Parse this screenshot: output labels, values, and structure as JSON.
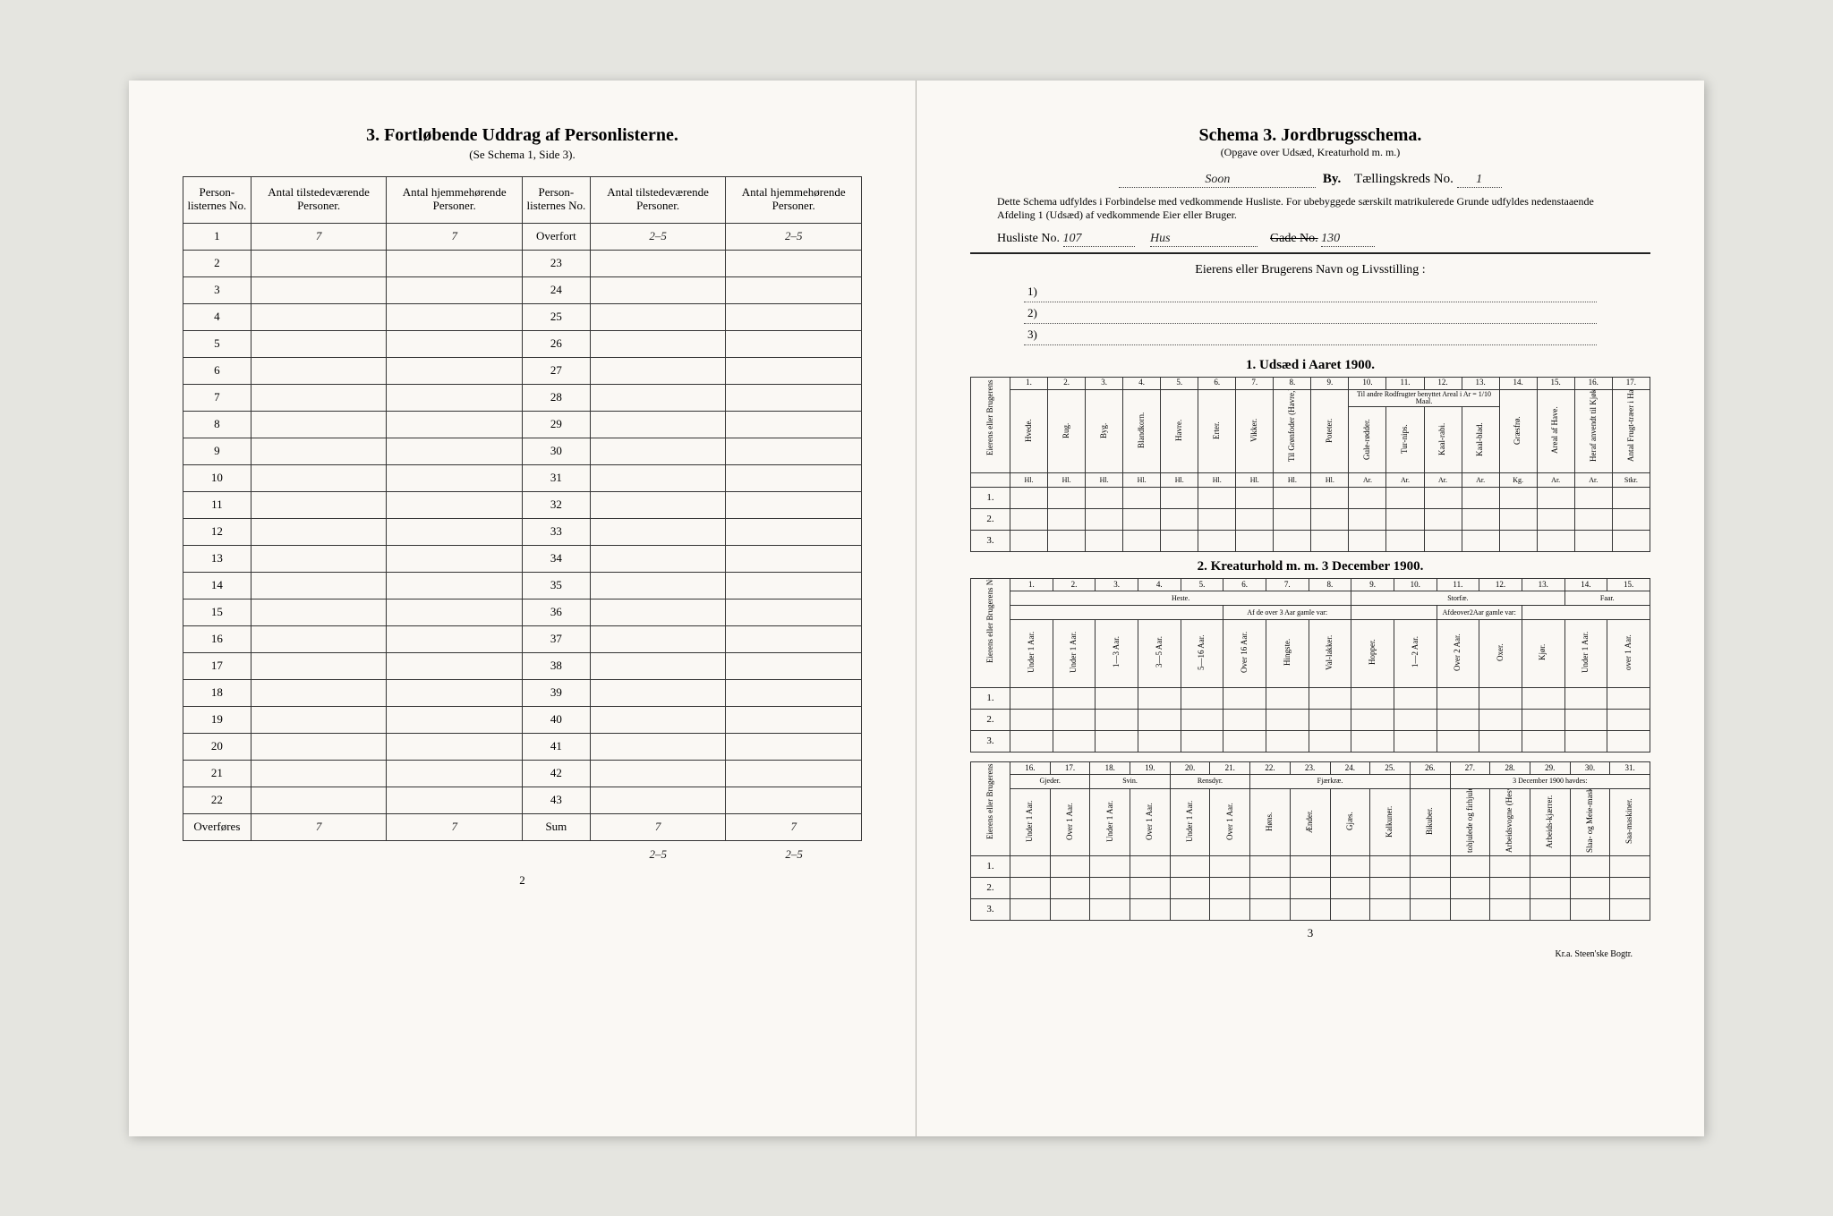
{
  "left": {
    "title": "3.  Fortløbende Uddrag af Personlisterne.",
    "subtitle": "(Se Schema 1, Side 3).",
    "headers": {
      "c1": "Person-listernes No.",
      "c2": "Antal tilstedeværende Personer.",
      "c3": "Antal hjemmehørende Personer.",
      "c4": "Person-listernes No.",
      "c5": "Antal tilstedeværende Personer.",
      "c6": "Antal hjemmehørende Personer."
    },
    "rows_left": [
      "1",
      "2",
      "3",
      "4",
      "5",
      "6",
      "7",
      "8",
      "9",
      "10",
      "11",
      "12",
      "13",
      "14",
      "15",
      "16",
      "17",
      "18",
      "19",
      "20",
      "21",
      "22"
    ],
    "overfort_label": "Overfort",
    "rows_right": [
      "23",
      "24",
      "25",
      "26",
      "27",
      "28",
      "29",
      "30",
      "31",
      "32",
      "33",
      "34",
      "35",
      "36",
      "37",
      "38",
      "39",
      "40",
      "41",
      "42",
      "43"
    ],
    "overfores_label": "Overføres",
    "sum_label": "Sum",
    "hand": {
      "r1c2": "7",
      "r1c3": "7",
      "over_c5": "2–5",
      "over_c6": "2–5",
      "bot_c2": "7",
      "bot_c3": "7",
      "sum_c5": "7",
      "sum_c6": "7",
      "below_c5": "2–5",
      "below_c6": "2–5"
    },
    "page_number": "2"
  },
  "right": {
    "title": "Schema 3.  Jordbrugsschema.",
    "subtitle": "(Opgave over Udsæd, Kreaturhold m. m.)",
    "by_line": {
      "by_val": "Soon",
      "by_lbl": "By.",
      "tk_lbl": "Tællingskreds  No.",
      "tk_val": "1"
    },
    "blurb": "Dette Schema udfyldes i Forbindelse med vedkommende Husliste.  For ubebyggede særskilt matrikulerede Grunde udfyldes nedenstaaende Afdeling 1 (Udsæd) af vedkommende Eier eller Bruger.",
    "husliste": {
      "lbl": "Husliste No.",
      "val": "107",
      "mid": "Hus",
      "gade_lbl": "Gade  No.",
      "gade_val": "130"
    },
    "owners_lbl": "Eierens eller Brugerens Navn og Livsstilling :",
    "owner_lines": [
      "1)",
      "2)",
      "3)"
    ],
    "sect1": "1.  Udsæd i Aaret 1900.",
    "t1": {
      "side": "Eierens eller Brugerens Numer (se ovenfor).",
      "nums": [
        "1.",
        "2.",
        "3.",
        "4.",
        "5.",
        "6.",
        "7.",
        "8.",
        "9.",
        "10.",
        "11.",
        "12.",
        "13.",
        "14.",
        "15.",
        "16.",
        "17."
      ],
      "heads": [
        "Hvede.",
        "Rug.",
        "Byg.",
        "Blandkorn.",
        "Havre.",
        "Erter.",
        "Vikker.",
        "Til Grønfoder (Havre,Vikker o.a.)",
        "Poteter.",
        "Gule-rødder.",
        "Tur-nips.",
        "Kaal-rabi.",
        "Kaal-blad.",
        "Græsfrø.",
        "Areal af Have.",
        "Heraf anvendt til Kjøkkenhave-vækster.",
        "Antal Frugt-træer i Haven (tilsammen)."
      ],
      "two_span": "Til andre Rodfrugter benyttet Areal i Ar = 1/10 Maal.",
      "units": [
        "Hl.",
        "Hl.",
        "Hl.",
        "Hl.",
        "Hl.",
        "Hl.",
        "Hl.",
        "Hl.",
        "Hl.",
        "Ar.",
        "Ar.",
        "Ar.",
        "Ar.",
        "Kg.",
        "Ar.",
        "Ar.",
        "Stkr."
      ],
      "rows": [
        "1.",
        "2.",
        "3."
      ]
    },
    "sect2": "2.  Kreaturhold m. m. 3 December 1900.",
    "t2": {
      "side": "Eierens eller Brugerens Numer.",
      "nums": [
        "1.",
        "2.",
        "3.",
        "4.",
        "5.",
        "6.",
        "7.",
        "8.",
        "9.",
        "10.",
        "11.",
        "12.",
        "13.",
        "14.",
        "15."
      ],
      "groups": {
        "heste": "Heste.",
        "af3": "Af de over 3 Aar gamle var:",
        "storf": "Storfæ.",
        "af2": "Afdeover2Aar gamle var:",
        "faar": "Faar."
      },
      "heads": [
        "Under 1 Aar.",
        "1—3 Aar.",
        "3—5 Aar.",
        "5—16 Aar.",
        "Over 16 Aar.",
        "Hingste.",
        "Val-lakker.",
        "Hopper.",
        "1—2 Aar.",
        "Over 2 Aar.",
        "Oxer.",
        "Kjør.",
        "Under 1 Aar.",
        "over 1 Aar."
      ],
      "ua": "Under 1 Aar.",
      "rows": [
        "1.",
        "2.",
        "3."
      ]
    },
    "t3": {
      "side": "Eierens eller Brugerens Numer.",
      "nums": [
        "16.",
        "17.",
        "18.",
        "19.",
        "20.",
        "21.",
        "22.",
        "23.",
        "24.",
        "25.",
        "26.",
        "27.",
        "28.",
        "29.",
        "30.",
        "31."
      ],
      "groups": {
        "gj": "Gjeder.",
        "sv": "Svin.",
        "ren": "Rensdyr.",
        "fj": "Fjærkræ.",
        "dec": "3 December 1900 havdes:"
      },
      "heads": [
        "Under 1 Aar.",
        "Over 1 Aar.",
        "Under 1 Aar.",
        "Over 1 Aar.",
        "Under 1 Aar.",
        "Over 1 Aar.",
        "Høns.",
        "Ænder.",
        "Gjæs.",
        "Kalkuner.",
        "Bikuber.",
        "tohjulede og firhjulede Arbeidskjær.",
        "Arbeidsvogne (Hesvogne ikke medregnet)",
        "Arbeids-kjærrer.",
        "Slaa- og Meie-maskiner.",
        "Saa-maskiner."
      ],
      "rows": [
        "1.",
        "2.",
        "3."
      ]
    },
    "page_number": "3",
    "printer": "Kr.a.  Steen'ske Bogtr."
  },
  "colors": {
    "paper": "#faf8f4",
    "ink": "#222222",
    "border": "#333333",
    "bg": "#e5e5e0"
  }
}
